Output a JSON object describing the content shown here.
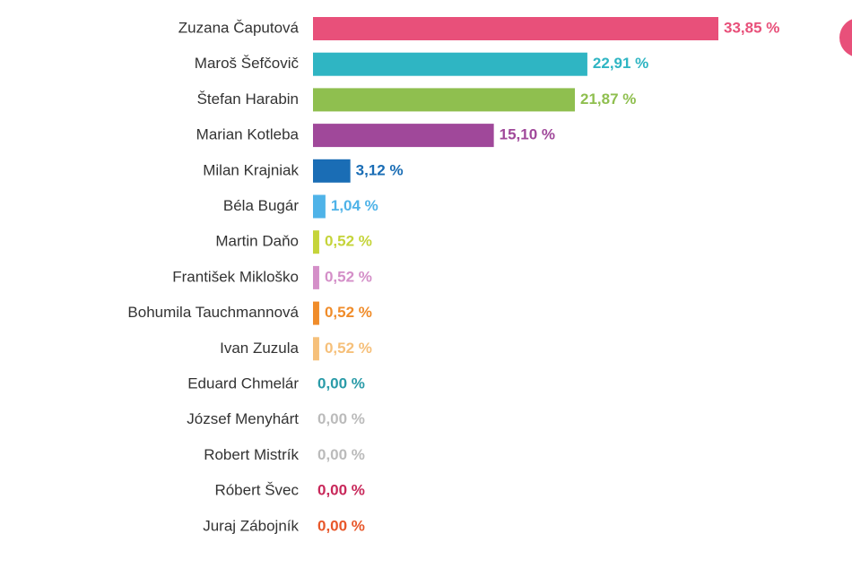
{
  "chart_data": {
    "type": "bar",
    "orientation": "horizontal",
    "categories": [
      "Zuzana Čaputová",
      "Maroš Šefčovič",
      "Štefan Harabin",
      "Marian Kotleba",
      "Milan Krajniak",
      "Béla Bugár",
      "Martin Daňo",
      "František Mikloško",
      "Bohumila Tauchmannová",
      "Ivan Zuzula",
      "Eduard Chmelár",
      "József Menyhárt",
      "Robert Mistrík",
      "Róbert Švec",
      "Juraj Zábojník"
    ],
    "values": [
      33.85,
      22.91,
      21.87,
      15.1,
      3.12,
      1.04,
      0.52,
      0.52,
      0.52,
      0.52,
      0.0,
      0.0,
      0.0,
      0.0,
      0.0
    ],
    "value_labels": [
      "33,85 %",
      "22,91 %",
      "21,87 %",
      "15,10 %",
      "3,12 %",
      "1,04 %",
      "0,52 %",
      "0,52 %",
      "0,52 %",
      "0,52 %",
      "0,00 %",
      "0,00 %",
      "0,00 %",
      "0,00 %",
      "0,00 %"
    ],
    "colors": [
      "#e8507a",
      "#2fb5c3",
      "#8fbf4f",
      "#a0489a",
      "#1a6db5",
      "#4fb3e8",
      "#c5d43a",
      "#d48fc8",
      "#f08c2a",
      "#f6c07a",
      "#2a9ba8",
      "#bbbbbb",
      "#bbbbbb",
      "#c8285a",
      "#e8572a"
    ]
  }
}
